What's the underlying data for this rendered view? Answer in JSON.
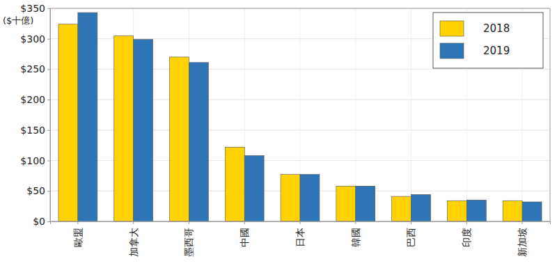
{
  "chart_data": {
    "type": "bar",
    "y_label": "($十億)",
    "categories": [
      "歐盟",
      "加拿大",
      "墨西哥",
      "中國",
      "日本",
      "韓國",
      "巴西",
      "印度",
      "新加坡"
    ],
    "series": [
      {
        "name": "2018",
        "color": "#ffd200",
        "values": [
          324,
          305,
          270,
          122,
          77,
          58,
          41,
          34,
          34
        ]
      },
      {
        "name": "2019",
        "color": "#2e75b6",
        "values": [
          343,
          299,
          261,
          108,
          77,
          58,
          44,
          35,
          32
        ]
      }
    ],
    "ylim": [
      0,
      350
    ],
    "yticks": [
      {
        "value": 0,
        "label": "$0"
      },
      {
        "value": 50,
        "label": "$50"
      },
      {
        "value": 100,
        "label": "$100"
      },
      {
        "value": 150,
        "label": "$150"
      },
      {
        "value": 200,
        "label": "$200"
      },
      {
        "value": 250,
        "label": "$250"
      },
      {
        "value": 300,
        "label": "$300"
      },
      {
        "value": 350,
        "label": "$350"
      }
    ],
    "grid": true,
    "legend": "top-right"
  }
}
